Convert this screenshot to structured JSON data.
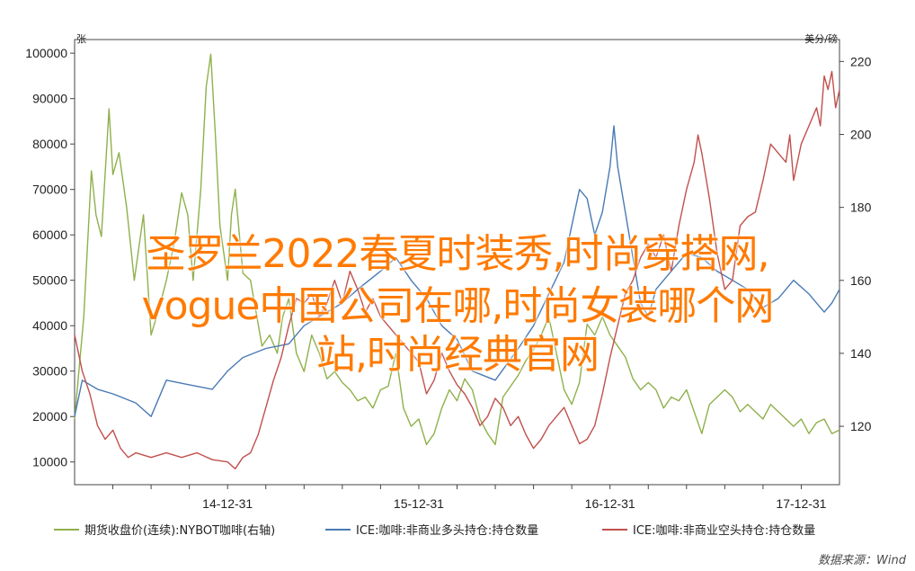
{
  "overlay": {
    "line1": "圣罗兰2022春夏时装秀,时尚穿搭网,",
    "line2": "vogue中国公司在哪,时尚女装哪个网",
    "line3": "站,时尚经典官网"
  },
  "chart_data": {
    "type": "line",
    "left_unit": "张",
    "right_unit": "美分/磅",
    "left_axis": {
      "ylim": [
        5000,
        103000
      ],
      "ticks": [
        10000,
        20000,
        30000,
        40000,
        50000,
        60000,
        70000,
        80000,
        90000,
        100000
      ],
      "tick_labels": [
        "10000",
        "20000",
        "30000",
        "40000",
        "50000",
        "60000",
        "70000",
        "80000",
        "90000",
        "100000"
      ]
    },
    "right_axis": {
      "ylim": [
        104,
        226
      ],
      "ticks": [
        120,
        140,
        160,
        180,
        200,
        220
      ],
      "tick_labels": [
        "120",
        "140",
        "160",
        "180",
        "200",
        "220"
      ]
    },
    "x_ticks": [
      {
        "label": "14-12-31",
        "t": 0.2
      },
      {
        "label": "15-12-31",
        "t": 0.45
      },
      {
        "label": "16-12-31",
        "t": 0.7
      },
      {
        "label": "17-12-31",
        "t": 0.95
      }
    ],
    "x_minor_count": 20,
    "grid": false,
    "legend_position": "bottom",
    "source": "数据来源：Wind",
    "colors": {
      "green": "#8fb04b",
      "blue": "#4a7ab5",
      "red": "#c0504d",
      "axis": "#444444"
    },
    "series": [
      {
        "name": "期货收盘价(连续):NYBOT咖啡(右轴)",
        "axis": "right",
        "color": "#8fb04b",
        "points": [
          [
            0.0,
            122
          ],
          [
            0.012,
            150
          ],
          [
            0.022,
            190
          ],
          [
            0.028,
            178
          ],
          [
            0.035,
            172
          ],
          [
            0.045,
            207
          ],
          [
            0.05,
            189
          ],
          [
            0.058,
            195
          ],
          [
            0.068,
            180
          ],
          [
            0.078,
            160
          ],
          [
            0.09,
            178
          ],
          [
            0.1,
            145
          ],
          [
            0.11,
            152
          ],
          [
            0.12,
            160
          ],
          [
            0.13,
            170
          ],
          [
            0.14,
            184
          ],
          [
            0.148,
            178
          ],
          [
            0.155,
            160
          ],
          [
            0.165,
            185
          ],
          [
            0.172,
            213
          ],
          [
            0.178,
            222
          ],
          [
            0.184,
            200
          ],
          [
            0.19,
            175
          ],
          [
            0.2,
            160
          ],
          [
            0.205,
            178
          ],
          [
            0.21,
            185
          ],
          [
            0.22,
            162
          ],
          [
            0.23,
            160
          ],
          [
            0.245,
            142
          ],
          [
            0.255,
            145
          ],
          [
            0.265,
            140
          ],
          [
            0.272,
            150
          ],
          [
            0.28,
            155
          ],
          [
            0.29,
            140
          ],
          [
            0.3,
            135
          ],
          [
            0.31,
            145
          ],
          [
            0.32,
            140
          ],
          [
            0.33,
            133
          ],
          [
            0.34,
            135
          ],
          [
            0.35,
            132
          ],
          [
            0.36,
            130
          ],
          [
            0.37,
            127
          ],
          [
            0.38,
            128
          ],
          [
            0.39,
            125
          ],
          [
            0.4,
            130
          ],
          [
            0.41,
            131
          ],
          [
            0.42,
            140
          ],
          [
            0.43,
            125
          ],
          [
            0.44,
            120
          ],
          [
            0.45,
            122
          ],
          [
            0.46,
            115
          ],
          [
            0.47,
            118
          ],
          [
            0.48,
            125
          ],
          [
            0.49,
            130
          ],
          [
            0.5,
            127
          ],
          [
            0.51,
            133
          ],
          [
            0.52,
            130
          ],
          [
            0.53,
            122
          ],
          [
            0.54,
            118
          ],
          [
            0.55,
            115
          ],
          [
            0.56,
            128
          ],
          [
            0.57,
            131
          ],
          [
            0.58,
            134
          ],
          [
            0.59,
            138
          ],
          [
            0.6,
            141
          ],
          [
            0.61,
            145
          ],
          [
            0.62,
            150
          ],
          [
            0.63,
            140
          ],
          [
            0.64,
            130
          ],
          [
            0.65,
            126
          ],
          [
            0.66,
            132
          ],
          [
            0.67,
            148
          ],
          [
            0.68,
            145
          ],
          [
            0.69,
            150
          ],
          [
            0.7,
            145
          ],
          [
            0.71,
            142
          ],
          [
            0.72,
            139
          ],
          [
            0.73,
            133
          ],
          [
            0.74,
            130
          ],
          [
            0.75,
            132
          ],
          [
            0.76,
            130
          ],
          [
            0.77,
            125
          ],
          [
            0.78,
            128
          ],
          [
            0.79,
            127
          ],
          [
            0.8,
            130
          ],
          [
            0.81,
            124
          ],
          [
            0.82,
            118
          ],
          [
            0.83,
            126
          ],
          [
            0.84,
            128
          ],
          [
            0.85,
            130
          ],
          [
            0.86,
            128
          ],
          [
            0.87,
            124
          ],
          [
            0.88,
            126
          ],
          [
            0.89,
            124
          ],
          [
            0.9,
            122
          ],
          [
            0.91,
            126
          ],
          [
            0.92,
            124
          ],
          [
            0.93,
            122
          ],
          [
            0.94,
            120
          ],
          [
            0.95,
            122
          ],
          [
            0.96,
            118
          ],
          [
            0.97,
            121
          ],
          [
            0.98,
            122
          ],
          [
            0.99,
            118
          ],
          [
            1.0,
            119
          ]
        ]
      },
      {
        "name": "ICE:咖啡:非商业多头持仓:持仓数量",
        "axis": "left",
        "color": "#4a7ab5",
        "points": [
          [
            0.0,
            20000
          ],
          [
            0.01,
            28000
          ],
          [
            0.03,
            26000
          ],
          [
            0.05,
            25000
          ],
          [
            0.08,
            23000
          ],
          [
            0.1,
            20000
          ],
          [
            0.12,
            28000
          ],
          [
            0.15,
            27000
          ],
          [
            0.18,
            26000
          ],
          [
            0.2,
            30000
          ],
          [
            0.22,
            33000
          ],
          [
            0.25,
            35000
          ],
          [
            0.28,
            36000
          ],
          [
            0.3,
            40000
          ],
          [
            0.32,
            42000
          ],
          [
            0.35,
            45000
          ],
          [
            0.37,
            48000
          ],
          [
            0.4,
            52000
          ],
          [
            0.42,
            55000
          ],
          [
            0.44,
            50000
          ],
          [
            0.46,
            46000
          ],
          [
            0.48,
            40000
          ],
          [
            0.5,
            37000
          ],
          [
            0.52,
            30000
          ],
          [
            0.55,
            28000
          ],
          [
            0.58,
            35000
          ],
          [
            0.6,
            40000
          ],
          [
            0.62,
            47000
          ],
          [
            0.64,
            54000
          ],
          [
            0.65,
            62000
          ],
          [
            0.66,
            70000
          ],
          [
            0.67,
            68000
          ],
          [
            0.68,
            60000
          ],
          [
            0.69,
            65000
          ],
          [
            0.7,
            75000
          ],
          [
            0.705,
            84000
          ],
          [
            0.71,
            75000
          ],
          [
            0.72,
            65000
          ],
          [
            0.73,
            55000
          ],
          [
            0.74,
            45000
          ],
          [
            0.75,
            42000
          ],
          [
            0.76,
            48000
          ],
          [
            0.78,
            52000
          ],
          [
            0.8,
            56000
          ],
          [
            0.82,
            55000
          ],
          [
            0.84,
            52000
          ],
          [
            0.86,
            50000
          ],
          [
            0.88,
            48000
          ],
          [
            0.9,
            44000
          ],
          [
            0.92,
            46000
          ],
          [
            0.94,
            50000
          ],
          [
            0.96,
            47000
          ],
          [
            0.98,
            43000
          ],
          [
            0.99,
            45000
          ],
          [
            1.0,
            48000
          ]
        ]
      },
      {
        "name": "ICE:咖啡:非商业空头持仓:持仓数量",
        "axis": "left",
        "color": "#c0504d",
        "points": [
          [
            0.0,
            38000
          ],
          [
            0.01,
            30000
          ],
          [
            0.02,
            25000
          ],
          [
            0.03,
            18000
          ],
          [
            0.04,
            15000
          ],
          [
            0.05,
            17000
          ],
          [
            0.06,
            13000
          ],
          [
            0.07,
            11000
          ],
          [
            0.08,
            12000
          ],
          [
            0.1,
            11000
          ],
          [
            0.12,
            12000
          ],
          [
            0.14,
            11000
          ],
          [
            0.16,
            12000
          ],
          [
            0.18,
            10500
          ],
          [
            0.2,
            10000
          ],
          [
            0.21,
            8500
          ],
          [
            0.22,
            11000
          ],
          [
            0.23,
            12000
          ],
          [
            0.24,
            16000
          ],
          [
            0.25,
            22000
          ],
          [
            0.26,
            28000
          ],
          [
            0.27,
            33000
          ],
          [
            0.28,
            40000
          ],
          [
            0.29,
            46000
          ],
          [
            0.3,
            45000
          ],
          [
            0.31,
            47000
          ],
          [
            0.32,
            42000
          ],
          [
            0.33,
            45000
          ],
          [
            0.34,
            50000
          ],
          [
            0.35,
            45000
          ],
          [
            0.36,
            52000
          ],
          [
            0.37,
            48000
          ],
          [
            0.38,
            43000
          ],
          [
            0.39,
            46000
          ],
          [
            0.4,
            42000
          ],
          [
            0.41,
            40000
          ],
          [
            0.42,
            38000
          ],
          [
            0.43,
            36000
          ],
          [
            0.44,
            34000
          ],
          [
            0.45,
            32000
          ],
          [
            0.46,
            25000
          ],
          [
            0.47,
            28000
          ],
          [
            0.48,
            34000
          ],
          [
            0.49,
            30000
          ],
          [
            0.5,
            27000
          ],
          [
            0.51,
            25000
          ],
          [
            0.52,
            22000
          ],
          [
            0.53,
            18000
          ],
          [
            0.54,
            20000
          ],
          [
            0.55,
            24000
          ],
          [
            0.56,
            22000
          ],
          [
            0.57,
            18000
          ],
          [
            0.58,
            20000
          ],
          [
            0.59,
            16000
          ],
          [
            0.6,
            13000
          ],
          [
            0.61,
            15000
          ],
          [
            0.62,
            18000
          ],
          [
            0.63,
            20000
          ],
          [
            0.64,
            22000
          ],
          [
            0.65,
            18000
          ],
          [
            0.66,
            14000
          ],
          [
            0.67,
            15000
          ],
          [
            0.68,
            18000
          ],
          [
            0.69,
            25000
          ],
          [
            0.7,
            33000
          ],
          [
            0.71,
            40000
          ],
          [
            0.72,
            47000
          ],
          [
            0.73,
            50000
          ],
          [
            0.74,
            55000
          ],
          [
            0.75,
            58000
          ],
          [
            0.76,
            55000
          ],
          [
            0.77,
            60000
          ],
          [
            0.78,
            52000
          ],
          [
            0.79,
            62000
          ],
          [
            0.8,
            70000
          ],
          [
            0.81,
            76000
          ],
          [
            0.815,
            82000
          ],
          [
            0.82,
            78000
          ],
          [
            0.83,
            68000
          ],
          [
            0.84,
            56000
          ],
          [
            0.85,
            48000
          ],
          [
            0.86,
            50000
          ],
          [
            0.87,
            62000
          ],
          [
            0.88,
            64000
          ],
          [
            0.89,
            65000
          ],
          [
            0.9,
            72000
          ],
          [
            0.91,
            80000
          ],
          [
            0.92,
            78000
          ],
          [
            0.93,
            76000
          ],
          [
            0.935,
            82000
          ],
          [
            0.94,
            72000
          ],
          [
            0.95,
            80000
          ],
          [
            0.96,
            84000
          ],
          [
            0.97,
            88000
          ],
          [
            0.975,
            84000
          ],
          [
            0.98,
            95000
          ],
          [
            0.985,
            92000
          ],
          [
            0.99,
            96000
          ],
          [
            0.995,
            88000
          ],
          [
            1.0,
            92000
          ]
        ]
      }
    ]
  }
}
